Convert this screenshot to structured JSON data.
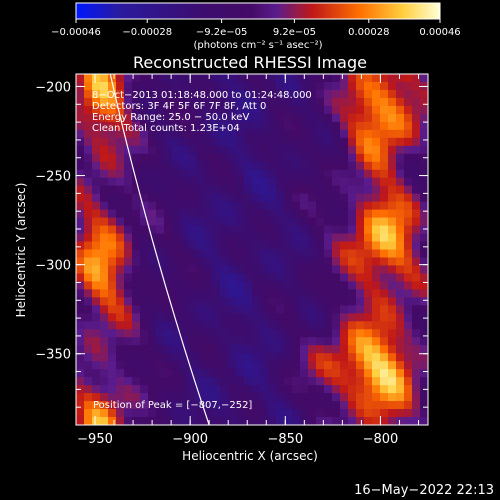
{
  "chart_data": {
    "type": "heatmap",
    "title": "Reconstructed RHESSI Image",
    "xlabel": "Heliocentric X (arcsec)",
    "ylabel": "Heliocentric Y (arcsec)",
    "xlim": [
      -960,
      -775
    ],
    "ylim": [
      -390,
      -193
    ],
    "x_ticks": [
      -950,
      -900,
      -850,
      -800
    ],
    "x_tick_labels": [
      "−950",
      "−900",
      "−850",
      "−800"
    ],
    "y_ticks": [
      -200,
      -250,
      -300,
      -350
    ],
    "y_tick_labels": [
      "−200",
      "−250",
      "−300",
      "−350"
    ],
    "colorbar": {
      "min": -0.00046,
      "max": 0.00046,
      "ticks": [
        -0.00046,
        -0.00028,
        -9.2e-05,
        9.2e-05,
        0.00028,
        0.00046
      ],
      "tick_labels": [
        "−0.00046",
        "−0.00028",
        "−9.2e−05",
        "9.2e−05",
        "0.00028",
        "0.00046"
      ],
      "units_label": "(photons cm⁻² s⁻¹ asec⁻²)",
      "colors": [
        "#0018ff",
        "#2a1a9e",
        "#3c0d6e",
        "#440a66",
        "#5a1c8c",
        "#c01818",
        "#ff7000",
        "#ffd040",
        "#ffffd8"
      ]
    },
    "annotations": [
      "8−Oct−2013 01:18:48.000 to 01:24:48.000",
      "Detectors: 3F 4F 5F 6F 7F 8F, Att 0",
      "Energy Range: 25.0 − 50.0 keV",
      "Clean     Total counts: 1.23E+04"
    ],
    "peak_label": "Position of Peak = [−807,−252]",
    "peak_position": [
      -807,
      -252
    ],
    "limb_curve": [
      [
        -942,
        -193
      ],
      [
        -930,
        -250
      ],
      [
        -912,
        -320
      ],
      [
        -890,
        -390
      ]
    ]
  },
  "footer": {
    "timestamp": "16−May−2022 22:13"
  }
}
